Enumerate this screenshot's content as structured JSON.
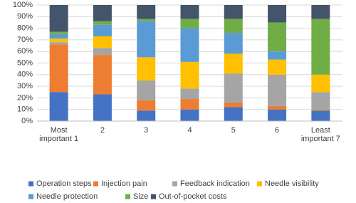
{
  "chart_data": {
    "type": "stacked_bar_100",
    "categories": [
      "Most important 1",
      "2",
      "3",
      "4",
      "5",
      "6",
      "Least important 7"
    ],
    "series": [
      {
        "name": "Operation steps",
        "color": "#4472c4",
        "values": [
          25,
          23,
          9,
          10,
          12,
          10,
          9
        ]
      },
      {
        "name": "Injection pain",
        "color": "#ed7d31",
        "values": [
          41,
          34,
          9,
          9,
          4,
          3,
          1
        ]
      },
      {
        "name": "Feedback indication",
        "color": "#a5a5a5",
        "values": [
          2,
          6,
          17,
          9,
          25,
          27,
          15
        ]
      },
      {
        "name": "Needle visibility",
        "color": "#ffc000",
        "values": [
          3,
          10,
          20,
          23,
          17,
          13,
          15
        ]
      },
      {
        "name": "Needle protection",
        "color": "#5b9bd5",
        "values": [
          4,
          10,
          31,
          29,
          18,
          7,
          0
        ]
      },
      {
        "name": "Size",
        "color": "#70ad47",
        "values": [
          2,
          3,
          2,
          8,
          12,
          25,
          48
        ]
      },
      {
        "name": "Out-of-pocket costs",
        "color": "#44546a",
        "values": [
          23,
          14,
          12,
          12,
          12,
          15,
          12
        ]
      }
    ],
    "ylim": [
      0,
      100
    ],
    "yticks": [
      {
        "value": 0,
        "label": "0%"
      },
      {
        "value": 10,
        "label": "10%"
      },
      {
        "value": 20,
        "label": "20%"
      },
      {
        "value": 30,
        "label": "30%"
      },
      {
        "value": 40,
        "label": "40%"
      },
      {
        "value": 50,
        "label": "50%"
      },
      {
        "value": 60,
        "label": "60%"
      },
      {
        "value": 70,
        "label": "70%"
      },
      {
        "value": 80,
        "label": "80%"
      },
      {
        "value": 90,
        "label": "90%"
      },
      {
        "value": 100,
        "label": "100%"
      }
    ],
    "grid": true,
    "legend": "bottom"
  }
}
